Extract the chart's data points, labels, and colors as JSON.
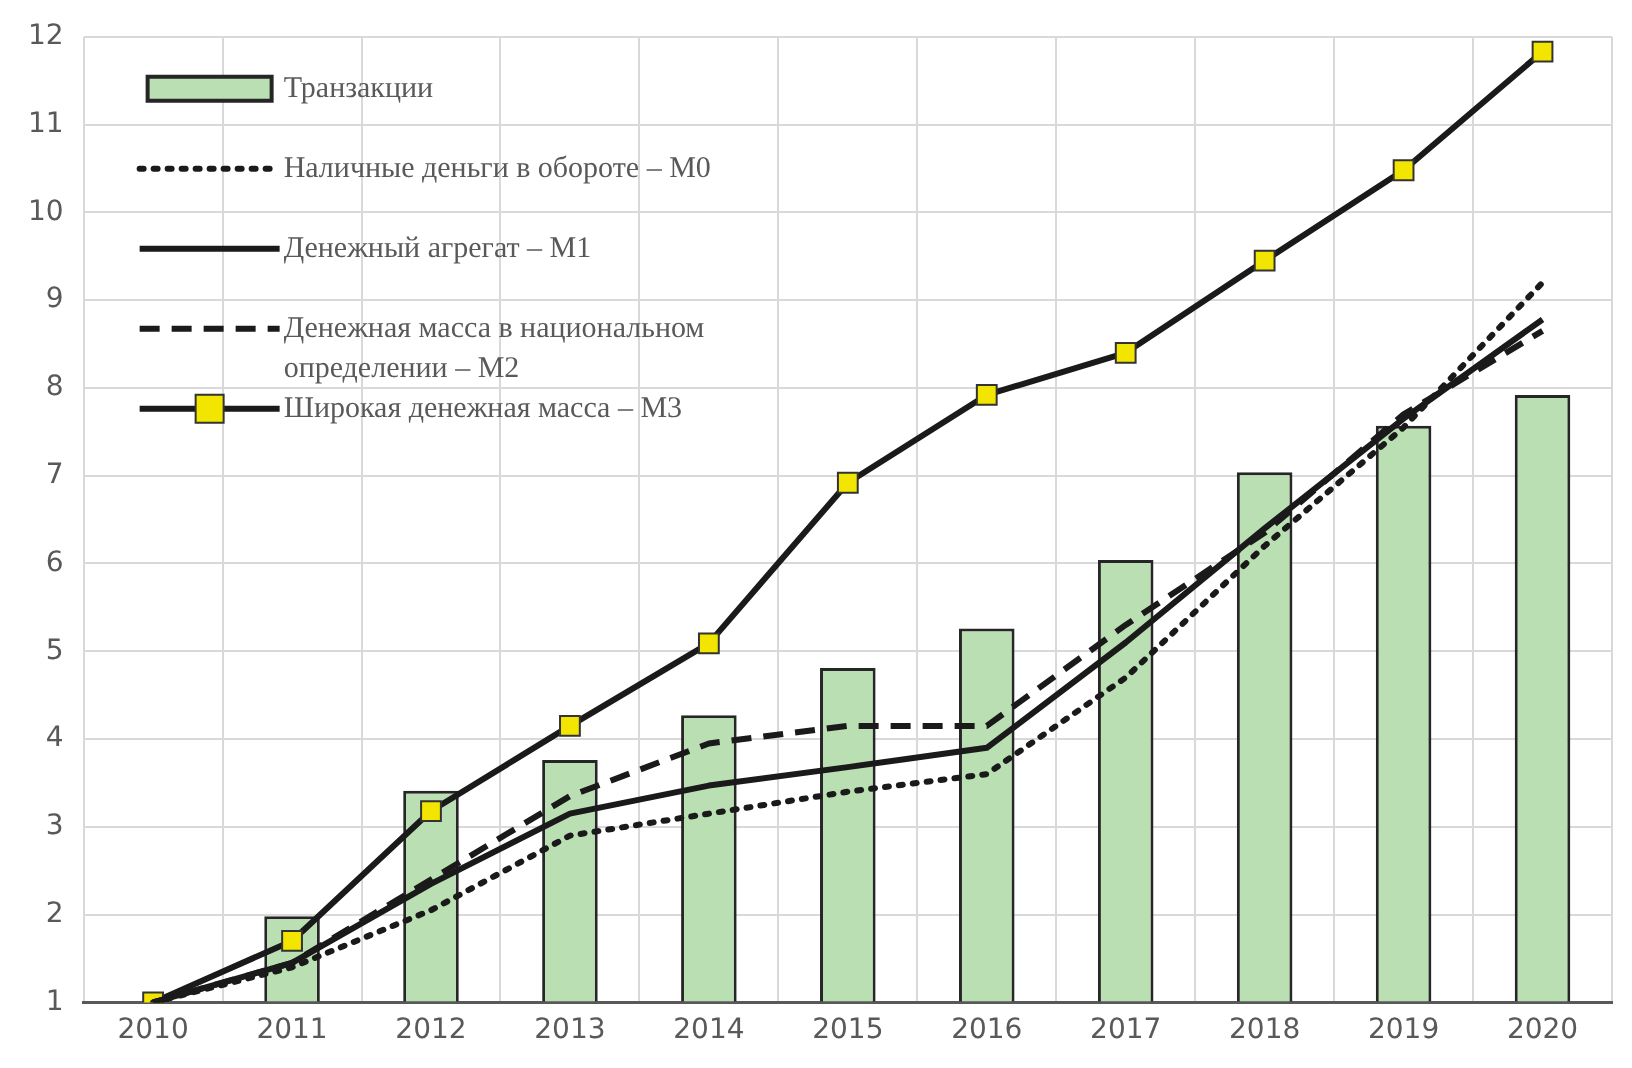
{
  "chart_data": {
    "type": "bar",
    "categories": [
      "2010",
      "2011",
      "2012",
      "2013",
      "2014",
      "2015",
      "2016",
      "2017",
      "2018",
      "2019",
      "2020"
    ],
    "series": [
      {
        "name": "Транзакции",
        "color": "#b9dfb2",
        "values": [
          null,
          1.98,
          3.41,
          3.76,
          4.27,
          4.81,
          5.26,
          6.04,
          7.04,
          7.57,
          7.92
        ]
      },
      {
        "name": "Наличные деньги в обороте – М0",
        "type": "line",
        "line_style": "dotted",
        "marker": "none",
        "color": "#1a1a1a",
        "values": [
          1,
          1.4,
          2.05,
          2.9,
          3.15,
          3.4,
          3.6,
          4.7,
          6.2,
          7.55,
          9.2
        ]
      },
      {
        "name": "Денежный агрегат – М1",
        "type": "line",
        "line_style": "solid",
        "marker": "none",
        "color": "#1a1a1a",
        "values": [
          1,
          1.45,
          2.35,
          3.15,
          3.47,
          3.68,
          3.9,
          5.1,
          6.4,
          7.65,
          8.78
        ]
      },
      {
        "name": "Денежная масса в национальном определении – М2",
        "type": "line",
        "line_style": "dashed",
        "marker": "none",
        "color": "#1a1a1a",
        "values": [
          1,
          1.45,
          2.4,
          3.35,
          3.95,
          4.15,
          4.15,
          5.3,
          6.35,
          7.7,
          8.65
        ]
      },
      {
        "name": "Широкая денежная масса – М3",
        "type": "line",
        "line_style": "solid",
        "marker": "square",
        "color": "#1a1a1a",
        "colors": [
          "#f2e600",
          "#f2e600",
          "#f2e600",
          "#f2e600",
          "#f2e600",
          "#f2e600",
          "#f2e600",
          "#f2e600",
          "#f2e600",
          "#f2e600",
          "#f2e600"
        ],
        "values": [
          1,
          1.7,
          3.18,
          4.15,
          5.09,
          6.92,
          7.92,
          8.4,
          9.45,
          10.48,
          11.83
        ]
      }
    ],
    "ylim": [
      1,
      12
    ],
    "yticks": [
      1,
      2,
      3,
      4,
      5,
      6,
      7,
      8,
      9,
      10,
      11,
      12
    ],
    "grid": true,
    "legend": "top left"
  }
}
